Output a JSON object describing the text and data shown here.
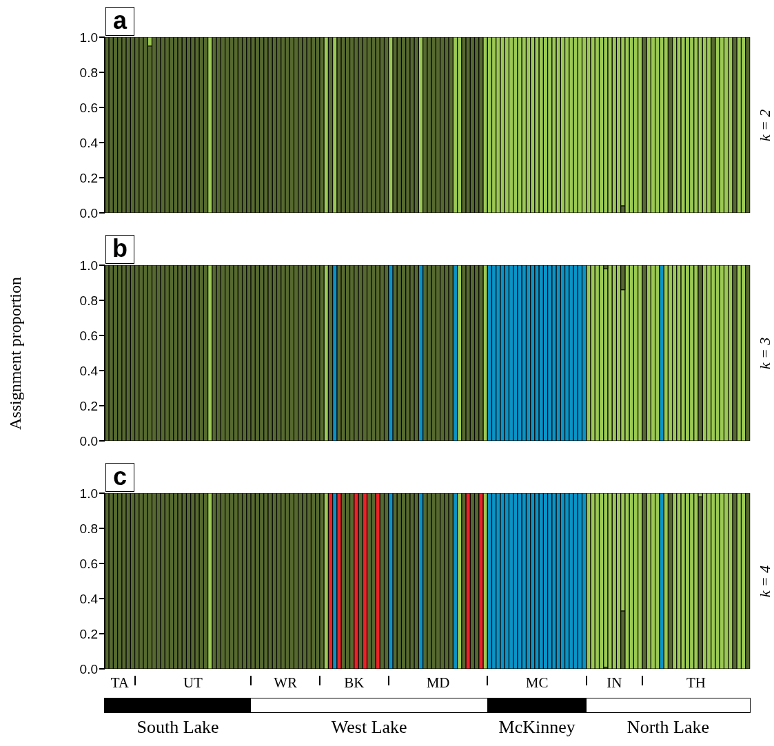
{
  "chart_data": [
    {
      "type": "bar",
      "title": "a",
      "y2label": "k = 2",
      "stacked": true,
      "tick_labels": "y",
      "ylim": [
        0,
        1
      ],
      "yticks": [
        {
          "value": 0,
          "label": "0.0"
        },
        {
          "value": 0.2,
          "label": "0.2"
        },
        {
          "value": 0.4,
          "label": "0.4"
        },
        {
          "value": 0.6,
          "label": "0.6"
        },
        {
          "value": 0.8,
          "label": "0.8"
        },
        {
          "value": 1,
          "label": "1.0"
        }
      ],
      "categories": [
        null,
        null,
        null,
        null,
        null,
        null,
        null,
        null,
        null,
        null,
        null,
        null,
        null,
        null,
        null,
        null,
        null,
        null,
        null,
        null,
        null,
        null,
        null,
        null,
        null,
        null,
        null,
        null,
        null,
        null,
        null,
        null,
        null,
        null,
        null,
        null,
        null,
        null,
        null,
        null,
        null,
        null,
        null,
        null,
        null,
        null,
        null,
        null,
        null,
        null,
        null,
        null,
        null,
        null,
        null,
        null,
        null,
        null,
        null,
        null,
        null,
        null,
        null,
        null,
        null,
        null,
        null,
        null,
        null,
        null,
        null,
        null,
        null,
        null,
        null,
        null,
        null,
        null,
        null,
        null,
        null,
        null,
        null,
        null,
        null,
        null,
        null,
        null,
        null,
        null,
        null,
        null,
        null,
        null,
        null,
        null,
        null,
        null,
        null,
        null,
        null,
        null,
        null,
        null,
        null,
        null,
        null,
        null,
        null,
        null,
        null,
        null,
        null,
        null,
        null,
        null,
        null,
        null,
        null,
        null,
        null,
        null,
        null,
        null,
        null,
        null,
        null,
        null,
        null,
        null,
        null,
        null,
        null,
        null,
        null,
        null,
        null,
        null,
        null,
        null,
        null,
        null,
        null,
        null,
        null,
        null,
        null,
        null,
        null,
        null
      ],
      "series": [
        {
          "color": "#56692f",
          "values": [
            1,
            1,
            1,
            1,
            1,
            1,
            1,
            1,
            1,
            1,
            0.95,
            1,
            1,
            1,
            1,
            1,
            1,
            1,
            1,
            1,
            1,
            1,
            1,
            1,
            0,
            1,
            1,
            1,
            1,
            1,
            1,
            1,
            1,
            1,
            1,
            1,
            1,
            1,
            1,
            1,
            1,
            1,
            1,
            1,
            1,
            1,
            1,
            1,
            1,
            1,
            1,
            0,
            1,
            0,
            1,
            1,
            1,
            1,
            1,
            1,
            1,
            1,
            1,
            1,
            1,
            1,
            0,
            1,
            1,
            1,
            1,
            1,
            1,
            0,
            1,
            1,
            1,
            1,
            1,
            1,
            1,
            0,
            0,
            1,
            1,
            1,
            1,
            1,
            0,
            0,
            0,
            0,
            0,
            0,
            0,
            0,
            0,
            0,
            0,
            0,
            0,
            0,
            0,
            0,
            0,
            0,
            0,
            0,
            0,
            0,
            0,
            0,
            0,
            0,
            0,
            0,
            0,
            0,
            0,
            0,
            0.04,
            0,
            0,
            0,
            0,
            1,
            0,
            0,
            0,
            0,
            0,
            1,
            0,
            0,
            0,
            0,
            0,
            0,
            0,
            0,
            0,
            1,
            0,
            0,
            0,
            0,
            1,
            0,
            0,
            1
          ]
        },
        {
          "color": "#9bc953",
          "values": [
            0,
            0,
            0,
            0,
            0,
            0,
            0,
            0,
            0,
            0,
            0.05,
            0,
            0,
            0,
            0,
            0,
            0,
            0,
            0,
            0,
            0,
            0,
            0,
            0,
            1,
            0,
            0,
            0,
            0,
            0,
            0,
            0,
            0,
            0,
            0,
            0,
            0,
            0,
            0,
            0,
            0,
            0,
            0,
            0,
            0,
            0,
            0,
            0,
            0,
            0,
            0,
            1,
            0,
            1,
            0,
            0,
            0,
            0,
            0,
            0,
            0,
            0,
            0,
            0,
            0,
            0,
            1,
            0,
            0,
            0,
            0,
            0,
            0,
            1,
            0,
            0,
            0,
            0,
            0,
            0,
            0,
            1,
            1,
            0,
            0,
            0,
            0,
            0,
            1,
            1,
            1,
            1,
            1,
            1,
            1,
            1,
            1,
            1,
            1,
            1,
            1,
            1,
            1,
            1,
            1,
            1,
            1,
            1,
            1,
            1,
            1,
            1,
            1,
            1,
            1,
            1,
            1,
            1,
            1,
            1,
            0.96,
            1,
            1,
            1,
            1,
            0,
            1,
            1,
            1,
            1,
            1,
            0,
            1,
            1,
            1,
            1,
            1,
            1,
            1,
            1,
            1,
            0,
            1,
            1,
            1,
            1,
            0,
            1,
            1,
            0
          ]
        }
      ]
    },
    {
      "type": "bar",
      "title": "b",
      "ylabel": "Assignment proportion",
      "y2label": "k = 3",
      "stacked": true,
      "tick_labels": "y",
      "ylim": [
        0,
        1
      ],
      "yticks": [
        {
          "value": 0,
          "label": "0.0"
        },
        {
          "value": 0.2,
          "label": "0.2"
        },
        {
          "value": 0.4,
          "label": "0.4"
        },
        {
          "value": 0.6,
          "label": "0.6"
        },
        {
          "value": 0.8,
          "label": "0.8"
        },
        {
          "value": 1,
          "label": "1.0"
        }
      ],
      "categories": [
        null,
        null,
        null,
        null,
        null,
        null,
        null,
        null,
        null,
        null,
        null,
        null,
        null,
        null,
        null,
        null,
        null,
        null,
        null,
        null,
        null,
        null,
        null,
        null,
        null,
        null,
        null,
        null,
        null,
        null,
        null,
        null,
        null,
        null,
        null,
        null,
        null,
        null,
        null,
        null,
        null,
        null,
        null,
        null,
        null,
        null,
        null,
        null,
        null,
        null,
        null,
        null,
        null,
        null,
        null,
        null,
        null,
        null,
        null,
        null,
        null,
        null,
        null,
        null,
        null,
        null,
        null,
        null,
        null,
        null,
        null,
        null,
        null,
        null,
        null,
        null,
        null,
        null,
        null,
        null,
        null,
        null,
        null,
        null,
        null,
        null,
        null,
        null,
        null,
        null,
        null,
        null,
        null,
        null,
        null,
        null,
        null,
        null,
        null,
        null,
        null,
        null,
        null,
        null,
        null,
        null,
        null,
        null,
        null,
        null,
        null,
        null,
        null,
        null,
        null,
        null,
        null,
        null,
        null,
        null,
        null,
        null,
        null,
        null,
        null,
        null,
        null,
        null,
        null,
        null,
        null,
        null,
        null,
        null,
        null,
        null,
        null,
        null,
        null,
        null,
        null,
        null,
        null,
        null,
        null,
        null,
        null,
        null,
        null,
        null
      ],
      "series": [
        {
          "color": "#9bc953",
          "values": [
            0,
            0,
            0,
            0,
            0,
            0,
            0,
            0,
            0,
            0,
            0,
            0,
            0,
            0,
            0,
            0,
            0,
            0,
            0,
            0,
            0,
            0,
            0,
            0,
            1,
            0,
            0,
            0,
            0,
            0,
            0,
            0,
            0,
            0,
            0,
            0,
            0,
            0,
            0,
            0,
            0,
            0,
            0,
            0,
            0,
            0,
            0,
            0,
            0,
            0,
            0,
            1,
            0,
            0,
            0,
            0,
            0,
            0,
            0,
            0,
            0,
            0,
            0,
            0,
            0,
            0,
            0,
            0,
            0,
            0,
            0,
            0,
            0,
            0,
            0,
            0,
            0,
            0,
            0,
            0,
            0,
            0,
            1,
            0,
            0,
            0,
            0,
            0,
            1,
            0,
            0,
            0,
            0,
            0,
            0,
            0,
            0,
            0,
            0,
            0,
            0,
            0,
            0,
            0,
            0,
            0,
            0,
            0,
            0,
            0,
            0,
            0,
            1,
            1,
            1,
            1,
            0.98,
            1,
            1,
            1,
            0.86,
            1,
            1,
            1,
            1,
            0,
            1,
            1,
            1,
            0,
            1,
            1,
            1,
            1,
            1,
            1,
            1,
            1,
            0,
            1,
            1,
            1,
            1,
            1,
            1,
            1,
            0,
            1,
            1,
            0
          ]
        },
        {
          "color": "#56692f",
          "values": [
            1,
            1,
            1,
            1,
            1,
            1,
            1,
            1,
            1,
            1,
            1,
            1,
            1,
            1,
            1,
            1,
            1,
            1,
            1,
            1,
            1,
            1,
            1,
            1,
            0,
            1,
            1,
            1,
            1,
            1,
            1,
            1,
            1,
            1,
            1,
            1,
            1,
            1,
            1,
            1,
            1,
            1,
            1,
            1,
            1,
            1,
            1,
            1,
            1,
            1,
            1,
            0,
            1,
            0,
            1,
            1,
            1,
            1,
            1,
            1,
            1,
            1,
            1,
            1,
            1,
            1,
            0,
            1,
            1,
            1,
            1,
            1,
            1,
            0,
            1,
            1,
            1,
            1,
            1,
            1,
            1,
            0,
            0,
            1,
            1,
            1,
            1,
            1,
            0,
            0,
            0,
            0,
            0,
            0,
            0,
            0,
            0,
            0,
            0,
            0,
            0,
            0,
            0,
            0,
            0,
            0,
            0,
            0,
            0,
            0,
            0,
            0,
            0,
            0,
            0,
            0,
            0.02,
            0,
            0,
            0,
            0.14,
            0,
            0,
            0,
            0,
            1,
            0,
            0,
            0,
            0,
            0,
            0,
            0,
            0,
            0,
            0,
            0,
            0,
            1,
            0,
            0,
            0,
            0,
            0,
            0,
            0,
            1,
            0,
            0,
            1
          ]
        },
        {
          "color": "#0a93c6",
          "values": [
            0,
            0,
            0,
            0,
            0,
            0,
            0,
            0,
            0,
            0,
            0,
            0,
            0,
            0,
            0,
            0,
            0,
            0,
            0,
            0,
            0,
            0,
            0,
            0,
            0,
            0,
            0,
            0,
            0,
            0,
            0,
            0,
            0,
            0,
            0,
            0,
            0,
            0,
            0,
            0,
            0,
            0,
            0,
            0,
            0,
            0,
            0,
            0,
            0,
            0,
            0,
            0,
            0,
            1,
            0,
            0,
            0,
            0,
            0,
            0,
            0,
            0,
            0,
            0,
            0,
            0,
            1,
            0,
            0,
            0,
            0,
            0,
            0,
            1,
            0,
            0,
            0,
            0,
            0,
            0,
            0,
            1,
            0,
            0,
            0,
            0,
            0,
            0,
            0,
            1,
            1,
            1,
            1,
            1,
            1,
            1,
            1,
            1,
            1,
            1,
            1,
            1,
            1,
            1,
            1,
            1,
            1,
            1,
            1,
            1,
            1,
            1,
            0,
            0,
            0,
            0,
            0,
            0,
            0,
            0,
            0,
            0,
            0,
            0,
            0,
            0,
            0,
            0,
            0,
            1,
            0,
            0,
            0,
            0,
            0,
            0,
            0,
            0,
            0,
            0,
            0,
            0,
            0,
            0,
            0,
            0,
            0,
            0,
            0,
            0
          ]
        }
      ]
    },
    {
      "type": "bar",
      "title": "c",
      "y2label": "k = 4",
      "stacked": true,
      "tick_labels": "y",
      "ylim": [
        0,
        1
      ],
      "yticks": [
        {
          "value": 0,
          "label": "0.0"
        },
        {
          "value": 0.2,
          "label": "0.2"
        },
        {
          "value": 0.4,
          "label": "0.4"
        },
        {
          "value": 0.6,
          "label": "0.6"
        },
        {
          "value": 0.8,
          "label": "0.8"
        },
        {
          "value": 1,
          "label": "1.0"
        }
      ],
      "categories": [
        null,
        null,
        null,
        null,
        null,
        null,
        null,
        null,
        null,
        null,
        null,
        null,
        null,
        null,
        null,
        null,
        null,
        null,
        null,
        null,
        null,
        null,
        null,
        null,
        null,
        null,
        null,
        null,
        null,
        null,
        null,
        null,
        null,
        null,
        null,
        null,
        null,
        null,
        null,
        null,
        null,
        null,
        null,
        null,
        null,
        null,
        null,
        null,
        null,
        null,
        null,
        null,
        null,
        null,
        null,
        null,
        null,
        null,
        null,
        null,
        null,
        null,
        null,
        null,
        null,
        null,
        null,
        null,
        null,
        null,
        null,
        null,
        null,
        null,
        null,
        null,
        null,
        null,
        null,
        null,
        null,
        null,
        null,
        null,
        null,
        null,
        null,
        null,
        null,
        null,
        null,
        null,
        null,
        null,
        null,
        null,
        null,
        null,
        null,
        null,
        null,
        null,
        null,
        null,
        null,
        null,
        null,
        null,
        null,
        null,
        null,
        null,
        null,
        null,
        null,
        null,
        null,
        null,
        null,
        null,
        null,
        null,
        null,
        null,
        null,
        null,
        null,
        null,
        null,
        null,
        null,
        null,
        null,
        null,
        null,
        null,
        null,
        null,
        null,
        null,
        null,
        null,
        null,
        null,
        null,
        null,
        null,
        null,
        null,
        null
      ],
      "series": [
        {
          "color": "#56692f",
          "values": [
            1,
            1,
            1,
            1,
            1,
            1,
            1,
            1,
            1,
            1,
            1,
            1,
            1,
            1,
            1,
            1,
            1,
            1,
            1,
            1,
            1,
            1,
            1,
            1,
            0,
            1,
            1,
            1,
            1,
            1,
            1,
            1,
            1,
            1,
            1,
            1,
            1,
            1,
            1,
            1,
            1,
            1,
            1,
            1,
            1,
            1,
            1,
            1,
            1,
            1,
            1,
            0,
            0,
            0,
            0,
            1,
            1,
            1,
            0,
            1,
            0,
            1,
            1,
            0,
            1,
            1,
            0,
            1,
            1,
            1,
            1,
            1,
            1,
            0,
            1,
            1,
            1,
            1,
            1,
            1,
            1,
            0,
            0,
            1,
            0,
            1,
            1,
            0,
            0,
            0,
            0,
            0,
            0,
            0,
            0,
            0,
            0,
            0,
            0,
            0,
            0,
            0,
            0,
            0,
            0,
            0,
            0,
            0,
            0,
            0,
            0,
            0,
            0,
            0,
            0,
            0,
            0.01,
            0,
            0,
            0,
            0.33,
            0,
            0,
            0,
            0,
            1,
            0,
            0,
            0,
            0,
            0,
            1,
            0,
            0,
            0,
            0,
            0,
            0,
            0.98,
            0,
            0,
            0,
            0,
            0,
            0,
            0,
            1,
            0,
            0,
            1
          ]
        },
        {
          "color": "#9bc953",
          "values": [
            0,
            0,
            0,
            0,
            0,
            0,
            0,
            0,
            0,
            0,
            0,
            0,
            0,
            0,
            0,
            0,
            0,
            0,
            0,
            0,
            0,
            0,
            0,
            0,
            1,
            0,
            0,
            0,
            0,
            0,
            0,
            0,
            0,
            0,
            0,
            0,
            0,
            0,
            0,
            0,
            0,
            0,
            0,
            0,
            0,
            0,
            0,
            0,
            0,
            0,
            0,
            1,
            0,
            0,
            0,
            0,
            0,
            0,
            0,
            0,
            0,
            0,
            0,
            0,
            0,
            0,
            0,
            0,
            0,
            0,
            0,
            0,
            0,
            0,
            0,
            0,
            0,
            0,
            0,
            0,
            0,
            0,
            1,
            0,
            0,
            0,
            0,
            0,
            1,
            0,
            0,
            0,
            0,
            0,
            0,
            0,
            0,
            0,
            0,
            0,
            0,
            0,
            0,
            0,
            0,
            0,
            0,
            0,
            0,
            0,
            0,
            0,
            1,
            1,
            1,
            1,
            0.99,
            1,
            1,
            1,
            0.67,
            1,
            1,
            1,
            1,
            0,
            1,
            1,
            1,
            0,
            1,
            0,
            1,
            1,
            1,
            1,
            1,
            1,
            0.02,
            1,
            1,
            1,
            1,
            1,
            1,
            1,
            0,
            1,
            1,
            0
          ]
        },
        {
          "color": "#0a93c6",
          "values": [
            0,
            0,
            0,
            0,
            0,
            0,
            0,
            0,
            0,
            0,
            0,
            0,
            0,
            0,
            0,
            0,
            0,
            0,
            0,
            0,
            0,
            0,
            0,
            0,
            0,
            0,
            0,
            0,
            0,
            0,
            0,
            0,
            0,
            0,
            0,
            0,
            0,
            0,
            0,
            0,
            0,
            0,
            0,
            0,
            0,
            0,
            0,
            0,
            0,
            0,
            0,
            0,
            0,
            1,
            0,
            0,
            0,
            0,
            0,
            0,
            0,
            0,
            0,
            0,
            0,
            0,
            1,
            0,
            0,
            0,
            0,
            0,
            0,
            1,
            0,
            0,
            0,
            0,
            0,
            0,
            0,
            1,
            0,
            0,
            0,
            0,
            0,
            0,
            0,
            1,
            1,
            1,
            1,
            1,
            1,
            1,
            1,
            1,
            1,
            1,
            1,
            1,
            1,
            1,
            1,
            1,
            1,
            1,
            1,
            1,
            1,
            1,
            0,
            0,
            0,
            0,
            0,
            0,
            0,
            0,
            0,
            0,
            0,
            0,
            0,
            0,
            0,
            0,
            0,
            1,
            0,
            0,
            0,
            0,
            0,
            0,
            0,
            0,
            0,
            0,
            0,
            0,
            0,
            0,
            0,
            0,
            0,
            0,
            0,
            0
          ]
        },
        {
          "color": "#ec2227",
          "values": [
            0,
            0,
            0,
            0,
            0,
            0,
            0,
            0,
            0,
            0,
            0,
            0,
            0,
            0,
            0,
            0,
            0,
            0,
            0,
            0,
            0,
            0,
            0,
            0,
            0,
            0,
            0,
            0,
            0,
            0,
            0,
            0,
            0,
            0,
            0,
            0,
            0,
            0,
            0,
            0,
            0,
            0,
            0,
            0,
            0,
            0,
            0,
            0,
            0,
            0,
            0,
            0,
            1,
            0,
            1,
            0,
            0,
            0,
            1,
            0,
            1,
            0,
            0,
            1,
            0,
            0,
            0,
            0,
            0,
            0,
            0,
            0,
            0,
            0,
            0,
            0,
            0,
            0,
            0,
            0,
            0,
            0,
            0,
            0,
            1,
            0,
            0,
            1,
            0,
            0,
            0,
            0,
            0,
            0,
            0,
            0,
            0,
            0,
            0,
            0,
            0,
            0,
            0,
            0,
            0,
            0,
            0,
            0,
            0,
            0,
            0,
            0,
            0,
            0,
            0,
            0,
            0,
            0,
            0,
            0,
            0,
            0,
            0,
            0,
            0,
            0,
            0,
            0,
            0,
            0,
            0,
            0,
            0,
            0,
            0,
            0,
            0,
            0,
            0,
            0,
            0,
            0,
            0,
            0,
            0,
            0,
            0,
            0,
            0,
            0
          ]
        }
      ],
      "annotations": [
        "TA",
        "UT",
        "WR",
        "BK",
        "MD",
        "MC",
        "IN",
        "TH",
        "South Lake",
        "West Lake",
        "McKinney",
        "North Lake"
      ]
    }
  ]
}
